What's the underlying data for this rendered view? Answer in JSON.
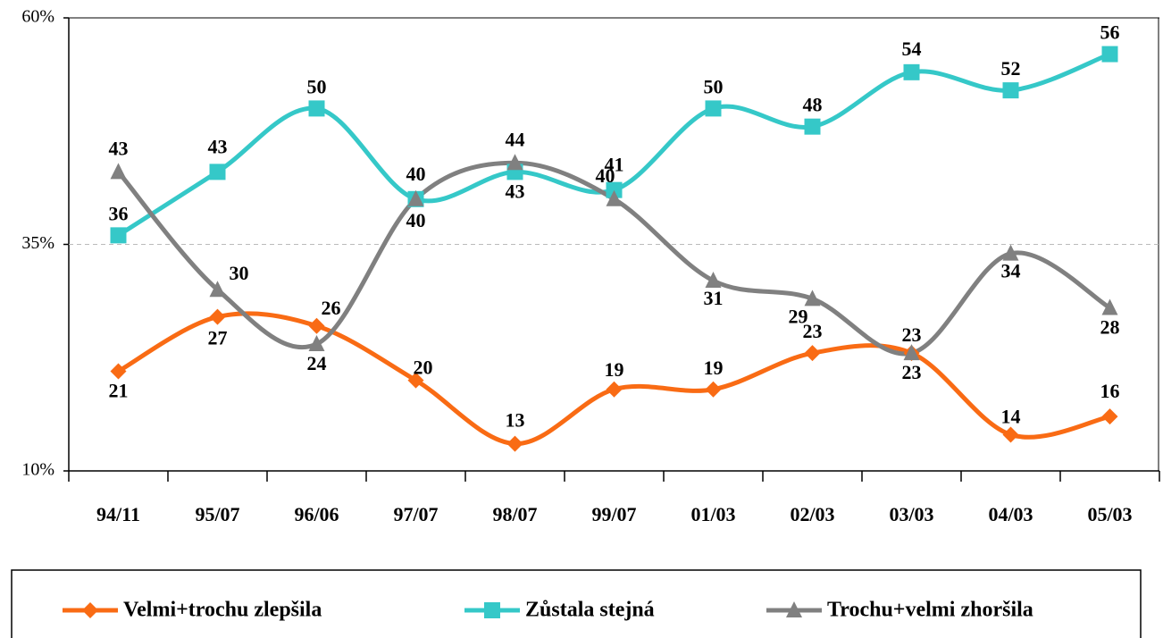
{
  "chart_data": {
    "type": "line",
    "categories": [
      "94/11",
      "95/07",
      "96/06",
      "97/07",
      "98/07",
      "99/07",
      "01/03",
      "02/03",
      "03/03",
      "04/03",
      "05/03"
    ],
    "series": [
      {
        "name": "Velmi+trochu zlepšila",
        "color": "#f96b14",
        "marker": "diamond",
        "values": [
          21,
          27,
          26,
          20,
          13,
          19,
          19,
          23,
          23,
          14,
          16
        ]
      },
      {
        "name": "Zůstala stejná",
        "color": "#35c8c8",
        "marker": "square",
        "values": [
          36,
          43,
          50,
          40,
          43,
          41,
          50,
          48,
          54,
          52,
          56
        ]
      },
      {
        "name": "Trochu+velmi zhoršila",
        "color": "#808080",
        "marker": "triangle",
        "values": [
          43,
          30,
          24,
          40,
          44,
          40,
          31,
          29,
          23,
          34,
          28
        ]
      }
    ],
    "ylim": [
      10,
      60
    ],
    "yticks": [
      {
        "value": 10,
        "label": "10%"
      },
      {
        "value": 35,
        "label": "35%"
      },
      {
        "value": 60,
        "label": "60%"
      }
    ],
    "grid": true,
    "legend": "bottom"
  }
}
